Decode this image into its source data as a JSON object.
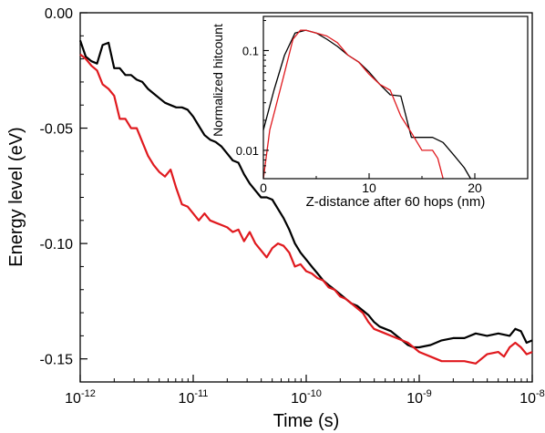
{
  "chart_data": [
    {
      "type": "line",
      "xlabel": "Time (s)",
      "ylabel": "Energy level (eV)",
      "xscale": "log",
      "xlim": [
        1e-12,
        1e-08
      ],
      "ylim": [
        -0.16,
        0.0
      ],
      "x_ticks": [
        {
          "value": 1e-12,
          "base": "10",
          "exp": "-12"
        },
        {
          "value": 1e-11,
          "base": "10",
          "exp": "-11"
        },
        {
          "value": 1e-10,
          "base": "10",
          "exp": "-10"
        },
        {
          "value": 1e-09,
          "base": "10",
          "exp": "-9"
        },
        {
          "value": 1e-08,
          "base": "10",
          "exp": "-8"
        }
      ],
      "y_ticks": [
        {
          "value": 0.0,
          "label": "0.00"
        },
        {
          "value": -0.05,
          "label": "-0.05"
        },
        {
          "value": -0.1,
          "label": "-0.10"
        },
        {
          "value": -0.15,
          "label": "-0.15"
        }
      ],
      "grid": false,
      "series": [
        {
          "color": "#000000",
          "points": [
            [
              1e-12,
              -0.012
            ],
            [
              1.12e-12,
              -0.019
            ],
            [
              1.26e-12,
              -0.021
            ],
            [
              1.41e-12,
              -0.022
            ],
            [
              1.58e-12,
              -0.014
            ],
            [
              1.78e-12,
              -0.013
            ],
            [
              2e-12,
              -0.024
            ],
            [
              2.24e-12,
              -0.024
            ],
            [
              2.51e-12,
              -0.027
            ],
            [
              2.82e-12,
              -0.027
            ],
            [
              3.16e-12,
              -0.029
            ],
            [
              3.55e-12,
              -0.03
            ],
            [
              3.98e-12,
              -0.033
            ],
            [
              4.47e-12,
              -0.035
            ],
            [
              5.01e-12,
              -0.037
            ],
            [
              5.62e-12,
              -0.039
            ],
            [
              6.31e-12,
              -0.04
            ],
            [
              7.08e-12,
              -0.041
            ],
            [
              7.94e-12,
              -0.041
            ],
            [
              8.91e-12,
              -0.042
            ],
            [
              1e-11,
              -0.045
            ],
            [
              1.12e-11,
              -0.049
            ],
            [
              1.26e-11,
              -0.053
            ],
            [
              1.41e-11,
              -0.055
            ],
            [
              1.58e-11,
              -0.056
            ],
            [
              1.78e-11,
              -0.058
            ],
            [
              2e-11,
              -0.061
            ],
            [
              2.24e-11,
              -0.064
            ],
            [
              2.51e-11,
              -0.065
            ],
            [
              2.82e-11,
              -0.07
            ],
            [
              3.16e-11,
              -0.074
            ],
            [
              3.55e-11,
              -0.077
            ],
            [
              3.98e-11,
              -0.08
            ],
            [
              4.47e-11,
              -0.08
            ],
            [
              5.01e-11,
              -0.081
            ],
            [
              5.62e-11,
              -0.085
            ],
            [
              6.31e-11,
              -0.089
            ],
            [
              7.08e-11,
              -0.094
            ],
            [
              7.94e-11,
              -0.1
            ],
            [
              8.91e-11,
              -0.104
            ],
            [
              1e-10,
              -0.107
            ],
            [
              1.12e-10,
              -0.11
            ],
            [
              1.26e-10,
              -0.113
            ],
            [
              1.41e-10,
              -0.116
            ],
            [
              1.58e-10,
              -0.118
            ],
            [
              1.78e-10,
              -0.12
            ],
            [
              2e-10,
              -0.122
            ],
            [
              2.24e-10,
              -0.124
            ],
            [
              2.51e-10,
              -0.126
            ],
            [
              2.82e-10,
              -0.127
            ],
            [
              3.16e-10,
              -0.129
            ],
            [
              3.55e-10,
              -0.131
            ],
            [
              3.98e-10,
              -0.134
            ],
            [
              4.47e-10,
              -0.136
            ],
            [
              5.01e-10,
              -0.137
            ],
            [
              5.62e-10,
              -0.138
            ],
            [
              6.31e-10,
              -0.14
            ],
            [
              7.08e-10,
              -0.142
            ],
            [
              7.94e-10,
              -0.144
            ],
            [
              8.91e-10,
              -0.145
            ],
            [
              1e-09,
              -0.145
            ],
            [
              1.26e-09,
              -0.144
            ],
            [
              1.58e-09,
              -0.142
            ],
            [
              2e-09,
              -0.141
            ],
            [
              2.51e-09,
              -0.141
            ],
            [
              3.16e-09,
              -0.139
            ],
            [
              3.98e-09,
              -0.14
            ],
            [
              5.01e-09,
              -0.139
            ],
            [
              6.31e-09,
              -0.14
            ],
            [
              7.08e-09,
              -0.137
            ],
            [
              7.94e-09,
              -0.138
            ],
            [
              8.91e-09,
              -0.143
            ],
            [
              1e-08,
              -0.142
            ]
          ]
        },
        {
          "color": "#e0191e",
          "points": [
            [
              1e-12,
              -0.018
            ],
            [
              1.12e-12,
              -0.02
            ],
            [
              1.26e-12,
              -0.023
            ],
            [
              1.41e-12,
              -0.025
            ],
            [
              1.58e-12,
              -0.031
            ],
            [
              1.78e-12,
              -0.033
            ],
            [
              2e-12,
              -0.036
            ],
            [
              2.24e-12,
              -0.046
            ],
            [
              2.51e-12,
              -0.046
            ],
            [
              2.82e-12,
              -0.05
            ],
            [
              3.16e-12,
              -0.05
            ],
            [
              3.55e-12,
              -0.056
            ],
            [
              3.98e-12,
              -0.062
            ],
            [
              4.47e-12,
              -0.066
            ],
            [
              5.01e-12,
              -0.069
            ],
            [
              5.62e-12,
              -0.071
            ],
            [
              6.31e-12,
              -0.068
            ],
            [
              7.08e-12,
              -0.076
            ],
            [
              7.94e-12,
              -0.083
            ],
            [
              8.91e-12,
              -0.084
            ],
            [
              1e-11,
              -0.087
            ],
            [
              1.12e-11,
              -0.09
            ],
            [
              1.26e-11,
              -0.087
            ],
            [
              1.41e-11,
              -0.09
            ],
            [
              1.58e-11,
              -0.091
            ],
            [
              1.78e-11,
              -0.092
            ],
            [
              2e-11,
              -0.093
            ],
            [
              2.24e-11,
              -0.095
            ],
            [
              2.51e-11,
              -0.094
            ],
            [
              2.82e-11,
              -0.099
            ],
            [
              3.16e-11,
              -0.095
            ],
            [
              3.55e-11,
              -0.1
            ],
            [
              3.98e-11,
              -0.103
            ],
            [
              4.47e-11,
              -0.106
            ],
            [
              5.01e-11,
              -0.102
            ],
            [
              5.62e-11,
              -0.1
            ],
            [
              6.31e-11,
              -0.101
            ],
            [
              7.08e-11,
              -0.104
            ],
            [
              7.94e-11,
              -0.11
            ],
            [
              8.91e-11,
              -0.109
            ],
            [
              1e-10,
              -0.112
            ],
            [
              1.12e-10,
              -0.113
            ],
            [
              1.26e-10,
              -0.115
            ],
            [
              1.41e-10,
              -0.116
            ],
            [
              1.58e-10,
              -0.119
            ],
            [
              1.78e-10,
              -0.12
            ],
            [
              2e-10,
              -0.123
            ],
            [
              2.24e-10,
              -0.124
            ],
            [
              2.51e-10,
              -0.126
            ],
            [
              2.82e-10,
              -0.128
            ],
            [
              3.16e-10,
              -0.13
            ],
            [
              3.55e-10,
              -0.134
            ],
            [
              3.98e-10,
              -0.137
            ],
            [
              4.47e-10,
              -0.138
            ],
            [
              5.01e-10,
              -0.139
            ],
            [
              5.62e-10,
              -0.14
            ],
            [
              6.31e-10,
              -0.141
            ],
            [
              7.08e-10,
              -0.142
            ],
            [
              7.94e-10,
              -0.143
            ],
            [
              8.91e-10,
              -0.145
            ],
            [
              1e-09,
              -0.147
            ],
            [
              1.26e-09,
              -0.149
            ],
            [
              1.58e-09,
              -0.151
            ],
            [
              2e-09,
              -0.151
            ],
            [
              2.51e-09,
              -0.151
            ],
            [
              3.16e-09,
              -0.152
            ],
            [
              3.98e-09,
              -0.148
            ],
            [
              5.01e-09,
              -0.147
            ],
            [
              5.62e-09,
              -0.149
            ],
            [
              6.31e-09,
              -0.145
            ],
            [
              7.08e-09,
              -0.143
            ],
            [
              7.94e-09,
              -0.145
            ],
            [
              8.91e-09,
              -0.148
            ],
            [
              1e-08,
              -0.147
            ]
          ]
        }
      ]
    },
    {
      "type": "line",
      "xlabel": "Z-distance after 60 hops (nm)",
      "ylabel": "Normalized hitcount",
      "yscale": "log",
      "xlim": [
        0,
        25
      ],
      "ylim": [
        0.0052,
        0.22
      ],
      "x_ticks": [
        {
          "value": 0,
          "label": "0"
        },
        {
          "value": 10,
          "label": "10"
        },
        {
          "value": 20,
          "label": "20"
        }
      ],
      "y_ticks": [
        {
          "value": 0.1,
          "label": "0.1"
        },
        {
          "value": 0.01,
          "label": "0.01"
        }
      ],
      "grid": false,
      "series": [
        {
          "color": "#000000",
          "points": [
            [
              0,
              0.016
            ],
            [
              1,
              0.04
            ],
            [
              2,
              0.09
            ],
            [
              3,
              0.15
            ],
            [
              4,
              0.16
            ],
            [
              5,
              0.15
            ],
            [
              6,
              0.13
            ],
            [
              7,
              0.11
            ],
            [
              8,
              0.09
            ],
            [
              9,
              0.077
            ],
            [
              10,
              0.061
            ],
            [
              11,
              0.046
            ],
            [
              12,
              0.036
            ],
            [
              13,
              0.035
            ],
            [
              14,
              0.0135
            ],
            [
              15,
              0.0135
            ],
            [
              16,
              0.0135
            ],
            [
              17,
              0.012
            ],
            [
              18,
              0.009
            ],
            [
              19,
              0.0067
            ],
            [
              19.6,
              0.0052
            ]
          ]
        },
        {
          "color": "#e0191e",
          "points": [
            [
              0,
              0.0052
            ],
            [
              0.6,
              0.016
            ],
            [
              1.2,
              0.028
            ],
            [
              2,
              0.06
            ],
            [
              2.8,
              0.13
            ],
            [
              3.5,
              0.16
            ],
            [
              4,
              0.16
            ],
            [
              5,
              0.15
            ],
            [
              6,
              0.14
            ],
            [
              7,
              0.12
            ],
            [
              8,
              0.09
            ],
            [
              9,
              0.077
            ],
            [
              10,
              0.058
            ],
            [
              11,
              0.046
            ],
            [
              12,
              0.04
            ],
            [
              13,
              0.022
            ],
            [
              14,
              0.015
            ],
            [
              15,
              0.01
            ],
            [
              16,
              0.01
            ],
            [
              16.5,
              0.0083
            ],
            [
              17,
              0.0052
            ]
          ]
        }
      ]
    }
  ]
}
